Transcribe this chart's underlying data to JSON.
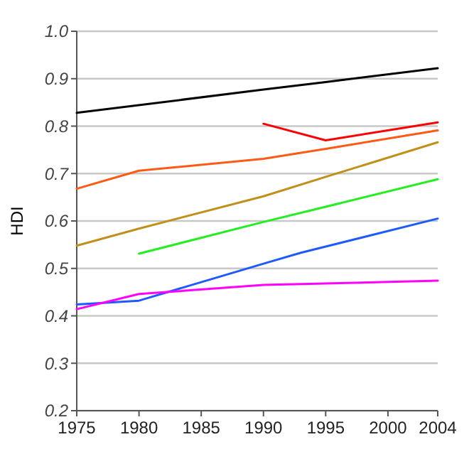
{
  "chart_data": {
    "type": "line",
    "ylabel": "HDI",
    "xlim": [
      1975,
      2004
    ],
    "xticks": [
      1975,
      1980,
      1985,
      1990,
      1995,
      2000,
      2004
    ],
    "ylim": [
      0.2,
      1.0
    ],
    "yticks": [
      {
        "value": 0.2,
        "label": "0.2"
      },
      {
        "value": 0.3,
        "label": "0.3"
      },
      {
        "value": 0.4,
        "label": "0.4"
      },
      {
        "value": 0.5,
        "label": "0.5"
      },
      {
        "value": 0.6,
        "label": "0.6"
      },
      {
        "value": 0.7,
        "label": "0.7"
      },
      {
        "value": 0.8,
        "label": "0.8"
      },
      {
        "value": 0.9,
        "label": "0.9"
      },
      {
        "value": 1.0,
        "label": "1.0"
      }
    ],
    "grid": "y",
    "marker": "none",
    "line_style": "solid",
    "series": [
      {
        "color": "#000000",
        "x": [
          1975,
          1990,
          1995,
          2004
        ],
        "values": [
          0.828,
          0.877,
          0.893,
          0.922
        ]
      },
      {
        "color": "#ff0000",
        "x": [
          1990,
          1995,
          2004
        ],
        "values": [
          0.805,
          0.77,
          0.808
        ]
      },
      {
        "color": "#ff5a14",
        "x": [
          1975,
          1980,
          1990,
          1995,
          2004
        ],
        "values": [
          0.668,
          0.706,
          0.731,
          0.752,
          0.791
        ]
      },
      {
        "color": "#c0901a",
        "x": [
          1975,
          1980,
          1990,
          1995,
          2004
        ],
        "values": [
          0.548,
          0.584,
          0.652,
          0.693,
          0.766
        ]
      },
      {
        "color": "#22ee22",
        "x": [
          1980,
          1990,
          1995,
          2004
        ],
        "values": [
          0.531,
          0.598,
          0.63,
          0.688
        ]
      },
      {
        "color": "#1e5aff",
        "x": [
          1975,
          1980,
          1990,
          1993,
          2004
        ],
        "values": [
          0.424,
          0.432,
          0.51,
          0.533,
          0.605
        ]
      },
      {
        "color": "#ff00ff",
        "x": [
          1975,
          1980,
          1990,
          2004
        ],
        "values": [
          0.414,
          0.446,
          0.465,
          0.474
        ]
      }
    ]
  }
}
